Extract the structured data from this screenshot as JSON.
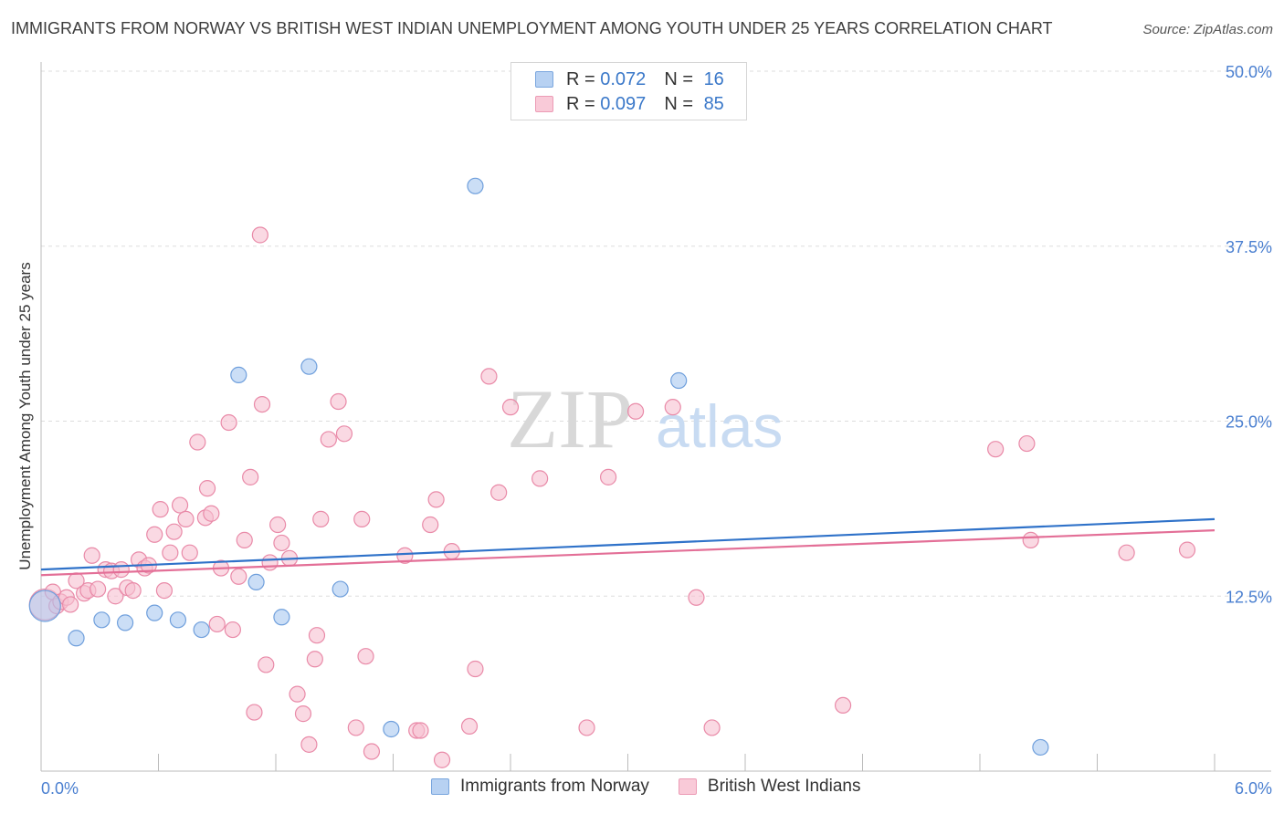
{
  "header": {
    "title": "IMMIGRANTS FROM NORWAY VS BRITISH WEST INDIAN UNEMPLOYMENT AMONG YOUTH UNDER 25 YEARS CORRELATION CHART",
    "source": "Source: ZipAtlas.com"
  },
  "watermark": {
    "zip": "ZIP",
    "atlas": "atlas"
  },
  "legend": {
    "rows": [
      {
        "r_label": "R =",
        "r_value": "0.072",
        "n_label": "N =",
        "n_value": "16"
      },
      {
        "r_label": "R =",
        "r_value": "0.097",
        "n_label": "N =",
        "n_value": "85"
      }
    ]
  },
  "colors": {
    "norway_fill": "#a9c8f0",
    "norway_stroke": "#6f9fdc",
    "norway_line": "#2f72c9",
    "bwi_fill": "#f7bfd0",
    "bwi_stroke": "#e98aa8",
    "bwi_line": "#e36f97",
    "tick_label": "#4a7fd0",
    "grid": "#dddddd",
    "axis": "#bbbbbb"
  },
  "chart_data": {
    "type": "scatter",
    "title": "IMMIGRANTS FROM NORWAY VS BRITISH WEST INDIAN UNEMPLOYMENT AMONG YOUTH UNDER 25 YEARS CORRELATION CHART",
    "xlabel": "",
    "ylabel": "Unemployment Among Youth under 25 years",
    "xlim": [
      0,
      6
    ],
    "ylim": [
      0,
      50
    ],
    "x_tick_labels": [
      "0.0%",
      "6.0%"
    ],
    "y_ticks": [
      12.5,
      25.0,
      37.5,
      50.0
    ],
    "y_tick_labels": [
      "12.5%",
      "25.0%",
      "37.5%",
      "50.0%"
    ],
    "grid": true,
    "legend_position": "top-center",
    "series": [
      {
        "name": "Immigrants from Norway",
        "r": 0.072,
        "n": 16,
        "trend": {
          "x": [
            0,
            6
          ],
          "y": [
            14.4,
            18.0
          ]
        },
        "points": [
          {
            "x": 0.02,
            "y": 11.8,
            "big": true
          },
          {
            "x": 0.18,
            "y": 9.5
          },
          {
            "x": 0.31,
            "y": 10.8
          },
          {
            "x": 0.43,
            "y": 10.6
          },
          {
            "x": 0.58,
            "y": 11.3
          },
          {
            "x": 0.7,
            "y": 10.8
          },
          {
            "x": 0.82,
            "y": 10.1
          },
          {
            "x": 1.01,
            "y": 28.3
          },
          {
            "x": 1.1,
            "y": 13.5
          },
          {
            "x": 1.23,
            "y": 11.0
          },
          {
            "x": 1.37,
            "y": 28.9
          },
          {
            "x": 1.53,
            "y": 13.0
          },
          {
            "x": 1.79,
            "y": 3.0
          },
          {
            "x": 2.22,
            "y": 41.8
          },
          {
            "x": 3.26,
            "y": 27.9
          },
          {
            "x": 5.11,
            "y": 1.7
          }
        ]
      },
      {
        "name": "British West Indians",
        "r": 0.097,
        "n": 85,
        "trend": {
          "x": [
            0,
            6
          ],
          "y": [
            14.0,
            17.2
          ]
        },
        "points": [
          {
            "x": 0.02,
            "y": 11.9,
            "big": true
          },
          {
            "x": 0.06,
            "y": 12.8
          },
          {
            "x": 0.08,
            "y": 11.8
          },
          {
            "x": 0.1,
            "y": 12.1
          },
          {
            "x": 0.13,
            "y": 12.4
          },
          {
            "x": 0.15,
            "y": 11.9
          },
          {
            "x": 0.18,
            "y": 13.6
          },
          {
            "x": 0.22,
            "y": 12.7
          },
          {
            "x": 0.24,
            "y": 12.9
          },
          {
            "x": 0.26,
            "y": 15.4
          },
          {
            "x": 0.29,
            "y": 13.0
          },
          {
            "x": 0.33,
            "y": 14.4
          },
          {
            "x": 0.36,
            "y": 14.3
          },
          {
            "x": 0.38,
            "y": 12.5
          },
          {
            "x": 0.41,
            "y": 14.4
          },
          {
            "x": 0.44,
            "y": 13.1
          },
          {
            "x": 0.47,
            "y": 12.9
          },
          {
            "x": 0.5,
            "y": 15.1
          },
          {
            "x": 0.53,
            "y": 14.5
          },
          {
            "x": 0.55,
            "y": 14.7
          },
          {
            "x": 0.58,
            "y": 16.9
          },
          {
            "x": 0.61,
            "y": 18.7
          },
          {
            "x": 0.63,
            "y": 12.9
          },
          {
            "x": 0.66,
            "y": 15.6
          },
          {
            "x": 0.68,
            "y": 17.1
          },
          {
            "x": 0.71,
            "y": 19.0
          },
          {
            "x": 0.74,
            "y": 18.0
          },
          {
            "x": 0.76,
            "y": 15.6
          },
          {
            "x": 0.8,
            "y": 23.5
          },
          {
            "x": 0.84,
            "y": 18.1
          },
          {
            "x": 0.85,
            "y": 20.2
          },
          {
            "x": 0.87,
            "y": 18.4
          },
          {
            "x": 0.9,
            "y": 10.5
          },
          {
            "x": 0.92,
            "y": 14.5
          },
          {
            "x": 0.96,
            "y": 24.9
          },
          {
            "x": 0.98,
            "y": 10.1
          },
          {
            "x": 1.01,
            "y": 13.9
          },
          {
            "x": 1.04,
            "y": 16.5
          },
          {
            "x": 1.07,
            "y": 21.0
          },
          {
            "x": 1.09,
            "y": 4.2
          },
          {
            "x": 1.12,
            "y": 38.3
          },
          {
            "x": 1.13,
            "y": 26.2
          },
          {
            "x": 1.15,
            "y": 7.6
          },
          {
            "x": 1.17,
            "y": 14.9
          },
          {
            "x": 1.21,
            "y": 17.6
          },
          {
            "x": 1.23,
            "y": 16.3
          },
          {
            "x": 1.27,
            "y": 15.2
          },
          {
            "x": 1.31,
            "y": 5.5
          },
          {
            "x": 1.34,
            "y": 4.1
          },
          {
            "x": 1.37,
            "y": 1.9
          },
          {
            "x": 1.4,
            "y": 8.0
          },
          {
            "x": 1.41,
            "y": 9.7
          },
          {
            "x": 1.43,
            "y": 18.0
          },
          {
            "x": 1.47,
            "y": 23.7
          },
          {
            "x": 1.52,
            "y": 26.4
          },
          {
            "x": 1.55,
            "y": 24.1
          },
          {
            "x": 1.61,
            "y": 3.1
          },
          {
            "x": 1.64,
            "y": 18.0
          },
          {
            "x": 1.66,
            "y": 8.2
          },
          {
            "x": 1.69,
            "y": 1.4
          },
          {
            "x": 1.86,
            "y": 15.4
          },
          {
            "x": 1.92,
            "y": 2.9
          },
          {
            "x": 1.94,
            "y": 2.9
          },
          {
            "x": 1.99,
            "y": 17.6
          },
          {
            "x": 2.02,
            "y": 19.4
          },
          {
            "x": 2.05,
            "y": 0.8
          },
          {
            "x": 2.1,
            "y": 15.7
          },
          {
            "x": 2.19,
            "y": 3.2
          },
          {
            "x": 2.22,
            "y": 7.3
          },
          {
            "x": 2.29,
            "y": 28.2
          },
          {
            "x": 2.34,
            "y": 19.9
          },
          {
            "x": 2.4,
            "y": 26.0
          },
          {
            "x": 2.55,
            "y": 20.9
          },
          {
            "x": 2.79,
            "y": 3.1
          },
          {
            "x": 2.9,
            "y": 21.0
          },
          {
            "x": 3.04,
            "y": 25.7
          },
          {
            "x": 3.23,
            "y": 26.0
          },
          {
            "x": 3.35,
            "y": 12.4
          },
          {
            "x": 3.43,
            "y": 3.1
          },
          {
            "x": 4.1,
            "y": 4.7
          },
          {
            "x": 4.88,
            "y": 23.0
          },
          {
            "x": 5.04,
            "y": 23.4
          },
          {
            "x": 5.06,
            "y": 16.5
          },
          {
            "x": 5.55,
            "y": 15.6
          },
          {
            "x": 5.86,
            "y": 15.8
          }
        ]
      }
    ]
  }
}
